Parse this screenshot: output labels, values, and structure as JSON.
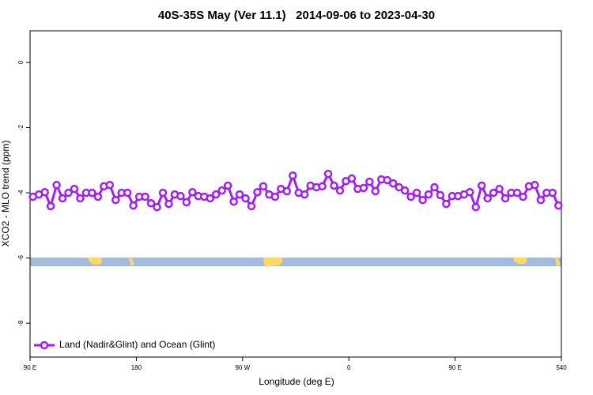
{
  "chart_data": {
    "type": "line",
    "title": "40S-35S May (Ver 11.1)   2014-09-06 to 2023-04-30",
    "xlabel": "Longitude (deg E)",
    "ylabel": "XCO2 - MLO trend (ppm)",
    "xlim": [
      90,
      540
    ],
    "ylim": [
      -9.04,
      0.97
    ],
    "xticks": [
      {
        "value": 90,
        "label": "90 E"
      },
      180,
      {
        "value": 270,
        "label": "90 W"
      },
      {
        "value": 360,
        "label": "0"
      },
      {
        "value": 450,
        "label": "90 E"
      },
      540
    ],
    "yticks": [
      0,
      -2,
      -4,
      -6,
      -8
    ],
    "legend": "lower left",
    "x": [
      92.5,
      97.5,
      102.5,
      107.5,
      112.5,
      117.5,
      122.5,
      127.5,
      132.5,
      137.5,
      142.5,
      147.5,
      152.5,
      157.5,
      162.5,
      167.5,
      172.5,
      177.5,
      182.5,
      187.5,
      192.5,
      197.5,
      202.5,
      207.5,
      212.5,
      217.5,
      222.5,
      227.5,
      232.5,
      237.5,
      242.5,
      247.5,
      252.5,
      257.5,
      262.5,
      267.5,
      272.5,
      277.5,
      282.5,
      287.5,
      292.5,
      297.5,
      302.5,
      307.5,
      312.5,
      317.5,
      322.5,
      327.5,
      332.5,
      337.5,
      342.5,
      347.5,
      352.5,
      357.5,
      362.5,
      367.5,
      372.5,
      377.5,
      382.5,
      387.5,
      392.5,
      397.5,
      402.5,
      407.5,
      412.5,
      417.5,
      422.5,
      427.5,
      432.5,
      437.5,
      442.5,
      447.5,
      452.5,
      457.5,
      462.5,
      467.5,
      472.5,
      477.5,
      482.5,
      487.5,
      492.5,
      497.5,
      502.5,
      507.5,
      512.5,
      517.5,
      522.5,
      527.5,
      532.5,
      537.5
    ],
    "series": [
      {
        "name": "Land (Nadir&Glint) and Ocean (Glint)",
        "color": "#a020f0",
        "values": [
          -4.12,
          -4.05,
          -3.98,
          -4.41,
          -3.76,
          -4.17,
          -4.0,
          -3.88,
          -4.17,
          -4.0,
          -4.0,
          -4.12,
          -3.8,
          -3.76,
          -4.22,
          -4.0,
          -4.0,
          -4.39,
          -4.12,
          -4.12,
          -4.32,
          -4.44,
          -4.0,
          -4.34,
          -4.05,
          -4.1,
          -4.29,
          -3.98,
          -4.1,
          -4.12,
          -4.17,
          -4.05,
          -3.93,
          -3.78,
          -4.27,
          -4.05,
          -4.17,
          -4.41,
          -3.98,
          -3.8,
          -4.05,
          -4.12,
          -3.88,
          -3.95,
          -3.47,
          -4.0,
          -4.05,
          -3.78,
          -3.83,
          -3.8,
          -3.42,
          -3.78,
          -3.93,
          -3.64,
          -3.56,
          -3.88,
          -3.85,
          -3.66,
          -3.95,
          -3.59,
          -3.61,
          -3.71,
          -3.83,
          -3.93,
          -4.12,
          -4.0,
          -4.22,
          -4.05,
          -3.83,
          -4.07,
          -4.34,
          -4.1,
          -4.1,
          -4.05,
          -3.98,
          -4.44,
          -3.78,
          -4.17,
          -4.0,
          -3.88,
          -4.17,
          -4.0,
          -4.0,
          -4.12,
          -3.8,
          -3.76,
          -4.22,
          -4.0,
          -4.0,
          -4.39
        ]
      }
    ]
  }
}
